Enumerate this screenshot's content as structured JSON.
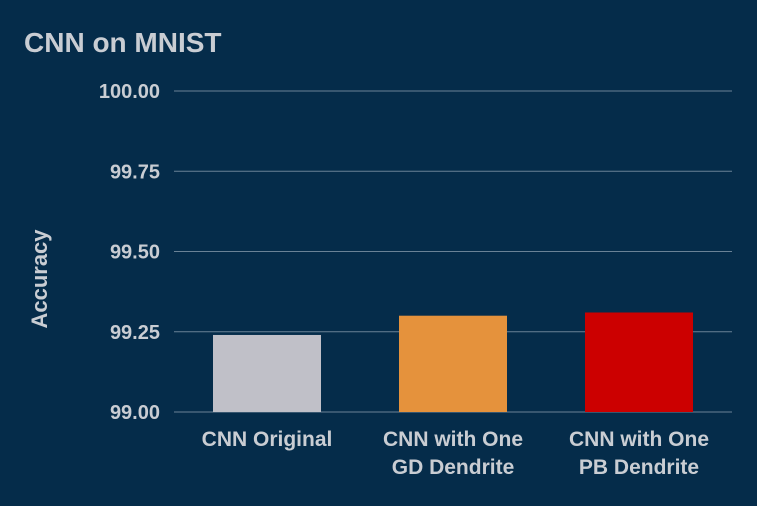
{
  "chart_data": {
    "type": "bar",
    "title": "CNN on MNIST",
    "xlabel": "",
    "ylabel": "Accuracy",
    "categories": [
      [
        "CNN Original"
      ],
      [
        "CNN with One",
        "GD Dendrite"
      ],
      [
        "CNN with One",
        "PB Dendrite"
      ]
    ],
    "values": [
      99.24,
      99.3,
      99.31
    ],
    "colors": [
      "#c0c0c8",
      "#e5923c",
      "#cc0000"
    ],
    "ylim": [
      99.0,
      100.0
    ],
    "yticks": [
      "99.00",
      "99.25",
      "99.50",
      "99.75",
      "100.00"
    ],
    "grid": true,
    "legend": "none"
  }
}
